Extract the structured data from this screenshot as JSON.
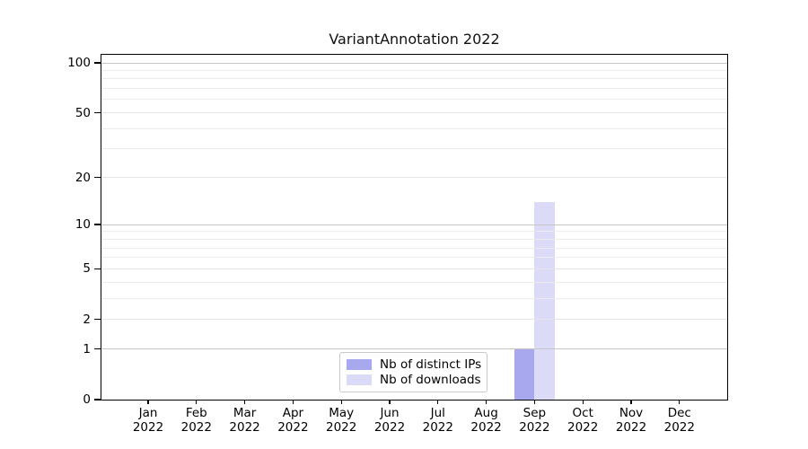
{
  "title": "VariantAnnotation 2022",
  "chart_data": {
    "type": "bar",
    "title": "VariantAnnotation 2022",
    "months": [
      "Jan",
      "Feb",
      "Mar",
      "Apr",
      "May",
      "Jun",
      "Jul",
      "Aug",
      "Sep",
      "Oct",
      "Nov",
      "Dec"
    ],
    "year": "2022",
    "series": [
      {
        "name": "Nb of distinct IPs",
        "color": "#a8a8ee",
        "values": [
          0,
          0,
          0,
          0,
          0,
          0,
          0,
          0,
          1,
          0,
          0,
          0
        ]
      },
      {
        "name": "Nb of downloads",
        "color": "#dbdbf8",
        "values": [
          0,
          0,
          0,
          0,
          0,
          0,
          0,
          0,
          14,
          0,
          0,
          0
        ]
      }
    ],
    "yscale": "log1p",
    "ylim": [
      0,
      112
    ],
    "yticks": [
      0,
      1,
      2,
      5,
      10,
      20,
      50,
      100
    ],
    "decade_yticks": [
      1,
      10,
      100
    ],
    "minor_yticks": [
      3,
      4,
      6,
      7,
      8,
      9,
      30,
      40,
      60,
      70,
      80,
      90
    ],
    "grid": true,
    "legend_position": "lower center",
    "xlabel": "",
    "ylabel": ""
  },
  "colors": {
    "axis": "#000000",
    "grid_major": "#c5c5c5",
    "grid_mid": "#e4e4e4",
    "grid_minor": "#ebebeb",
    "background": "#ffffff"
  }
}
